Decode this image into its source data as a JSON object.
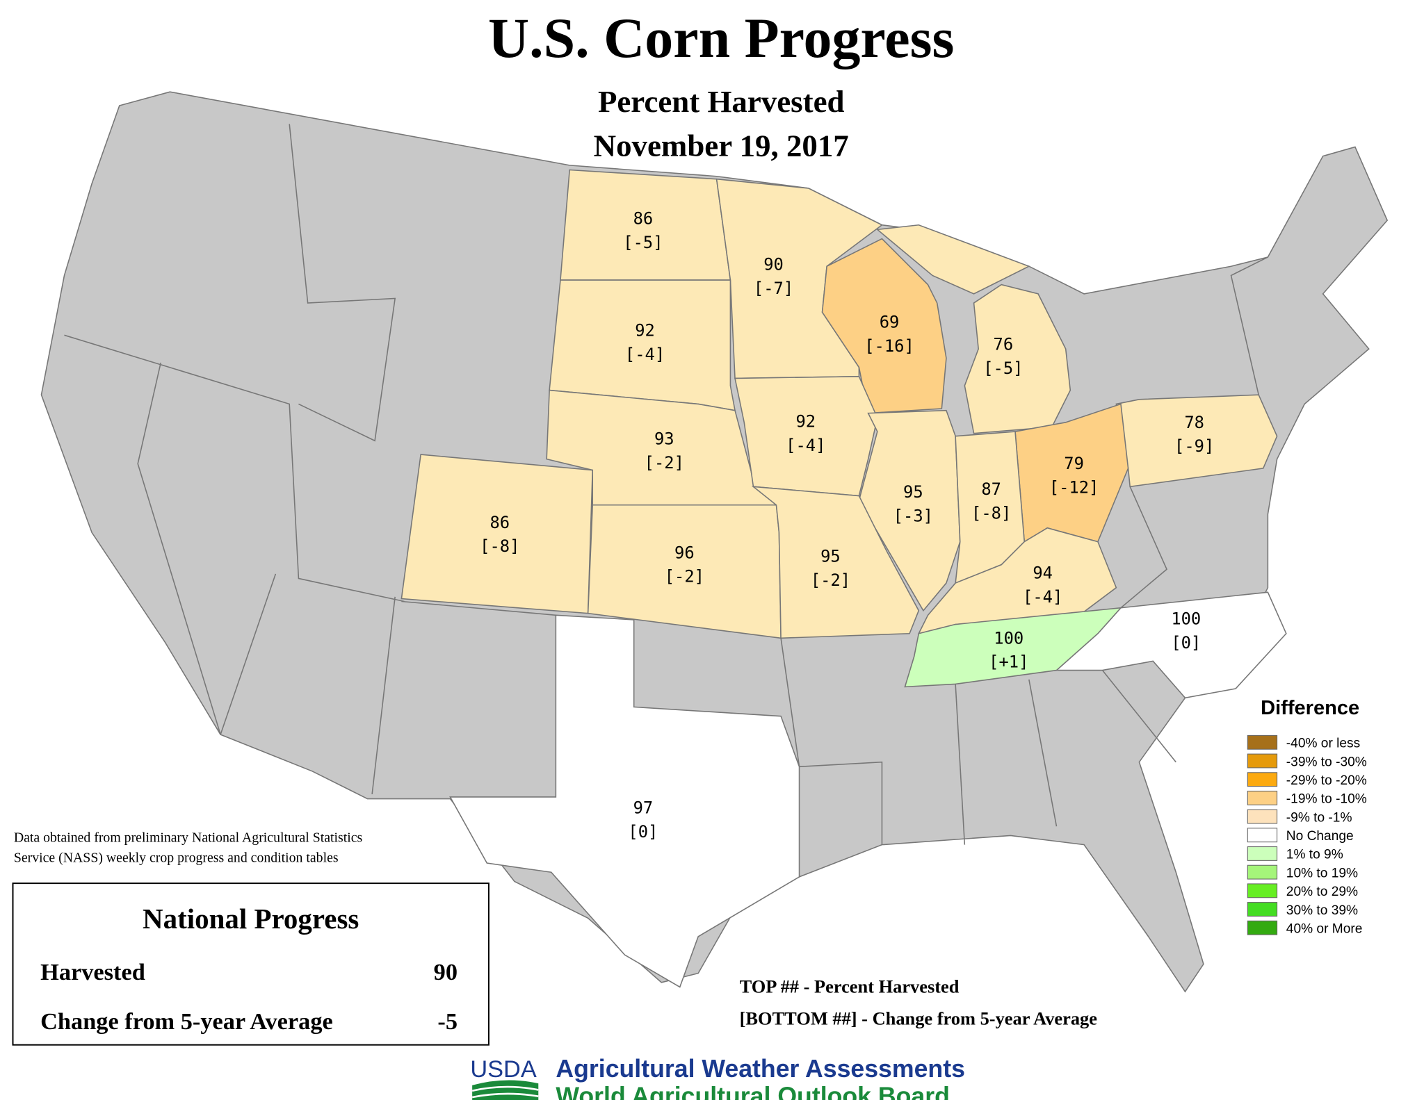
{
  "header": {
    "title": "U.S. Corn Progress",
    "subtitle": "Percent Harvested",
    "date": "November 19, 2017"
  },
  "states": [
    {
      "name": "ND",
      "top": 86,
      "bottom": "[-5]",
      "color": "#fde9b6"
    },
    {
      "name": "MN",
      "top": 90,
      "bottom": "[-7]",
      "color": "#fde9b6"
    },
    {
      "name": "SD",
      "top": 92,
      "bottom": "[-4]",
      "color": "#fde9b6"
    },
    {
      "name": "WI",
      "top": 69,
      "bottom": "[-16]",
      "color": "#fdd085"
    },
    {
      "name": "MI",
      "top": 76,
      "bottom": "[-5]",
      "color": "#fde9b6"
    },
    {
      "name": "NE",
      "top": 93,
      "bottom": "[-2]",
      "color": "#fde9b6"
    },
    {
      "name": "IA",
      "top": 92,
      "bottom": "[-4]",
      "color": "#fde9b6"
    },
    {
      "name": "PA",
      "top": 78,
      "bottom": "[-9]",
      "color": "#fde9b6"
    },
    {
      "name": "OH",
      "top": 79,
      "bottom": "[-12]",
      "color": "#fdd085"
    },
    {
      "name": "IL",
      "top": 95,
      "bottom": "[-3]",
      "color": "#fde9b6"
    },
    {
      "name": "IN",
      "top": 87,
      "bottom": "[-8]",
      "color": "#fde9b6"
    },
    {
      "name": "CO",
      "top": 86,
      "bottom": "[-8]",
      "color": "#fde9b6"
    },
    {
      "name": "KS",
      "top": 96,
      "bottom": "[-2]",
      "color": "#fde9b6"
    },
    {
      "name": "MO",
      "top": 95,
      "bottom": "[-2]",
      "color": "#fde9b6"
    },
    {
      "name": "KY",
      "top": 94,
      "bottom": "[-4]",
      "color": "#fde9b6"
    },
    {
      "name": "NC",
      "top": 100,
      "bottom": "[0]",
      "color": "#ffffff"
    },
    {
      "name": "TN",
      "top": 100,
      "bottom": "[+1]",
      "color": "#ccffbb"
    },
    {
      "name": "TX",
      "top": 97,
      "bottom": "[0]",
      "color": "#ffffff"
    }
  ],
  "legend": {
    "title": "Difference",
    "items": [
      {
        "label": "-40% or less",
        "color": "#a6701a"
      },
      {
        "label": "-39% to -30%",
        "color": "#e59a0b"
      },
      {
        "label": "-29% to -20%",
        "color": "#fcaa10"
      },
      {
        "label": "-19% to -10%",
        "color": "#fdd085"
      },
      {
        "label": "-9% to -1%",
        "color": "#fde2bc"
      },
      {
        "label": "No Change",
        "color": "#ffffff"
      },
      {
        "label": "1% to 9%",
        "color": "#ccffbb"
      },
      {
        "label": "10% to 19%",
        "color": "#a5f57a"
      },
      {
        "label": "20% to 29%",
        "color": "#66ee22"
      },
      {
        "label": "30% to 39%",
        "color": "#44dd22"
      },
      {
        "label": "40% or More",
        "color": "#33aa11"
      }
    ]
  },
  "source_note": [
    "Data obtained from preliminary National Agricultural Statistics",
    "Service (NASS) weekly crop progress and condition tables"
  ],
  "national": {
    "title": "National Progress",
    "rows": [
      [
        "Harvested",
        90
      ],
      [
        "Change from 5-year Average",
        -5
      ]
    ]
  },
  "key": [
    "TOP ## - Percent Harvested",
    "[BOTTOM ##] - Change from 5-year Average"
  ],
  "footer": {
    "logo": "USDA",
    "lines": [
      "Agricultural Weather Assessments",
      "World Agricultural Outlook Board"
    ]
  }
}
